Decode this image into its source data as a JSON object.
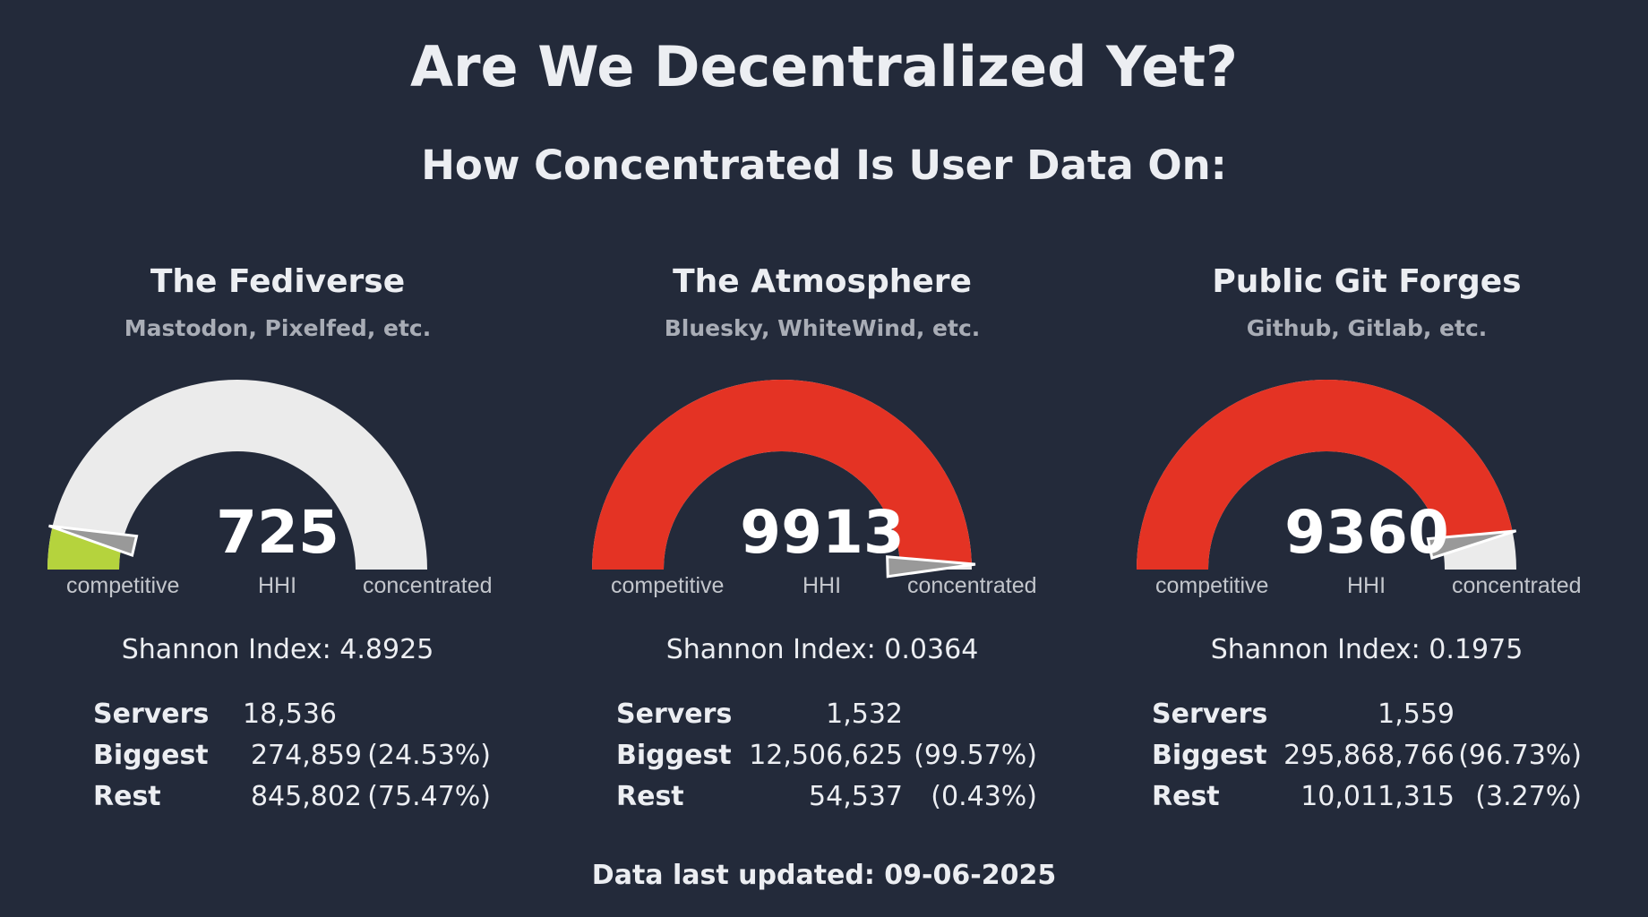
{
  "header": {
    "title": "Are We Decentralized Yet?",
    "subtitle": "How Concentrated Is User Data On:"
  },
  "colors": {
    "background": "#232a3a",
    "track": "#ebebeb",
    "competitive": "#b5d33d",
    "concentrated": "#e43324",
    "needle": "#999999"
  },
  "chart_data": [
    {
      "type": "gauge",
      "title": "The Fediverse",
      "subtitle": "Mastodon, Pixelfed, etc.",
      "value": 725,
      "value_label": "725",
      "min": 0,
      "max": 10000,
      "center_label": "HHI",
      "min_label": "competitive",
      "max_label": "concentrated",
      "fill_color": "#b5d33d",
      "shannon_label": "Shannon Index: 4.8925",
      "stats": [
        {
          "label": "Servers",
          "number": "18,536",
          "percent": ""
        },
        {
          "label": "Biggest",
          "number": "274,859",
          "percent": "(24.53%)"
        },
        {
          "label": "Rest",
          "number": "845,802",
          "percent": "(75.47%)"
        }
      ]
    },
    {
      "type": "gauge",
      "title": "The Atmosphere",
      "subtitle": "Bluesky, WhiteWind, etc.",
      "value": 9913,
      "value_label": "9913",
      "min": 0,
      "max": 10000,
      "center_label": "HHI",
      "min_label": "competitive",
      "max_label": "concentrated",
      "fill_color": "#e43324",
      "shannon_label": "Shannon Index: 0.0364",
      "stats": [
        {
          "label": "Servers",
          "number": "1,532",
          "percent": ""
        },
        {
          "label": "Biggest",
          "number": "12,506,625",
          "percent": "(99.57%)"
        },
        {
          "label": "Rest",
          "number": "54,537",
          "percent": "(0.43%)"
        }
      ]
    },
    {
      "type": "gauge",
      "title": "Public Git Forges",
      "subtitle": "Github, Gitlab, etc.",
      "value": 9360,
      "value_label": "9360",
      "min": 0,
      "max": 10000,
      "center_label": "HHI",
      "min_label": "competitive",
      "max_label": "concentrated",
      "fill_color": "#e43324",
      "shannon_label": "Shannon Index: 0.1975",
      "stats": [
        {
          "label": "Servers",
          "number": "1,559",
          "percent": ""
        },
        {
          "label": "Biggest",
          "number": "295,868,766",
          "percent": "(96.73%)"
        },
        {
          "label": "Rest",
          "number": "10,011,315",
          "percent": "(3.27%)"
        }
      ]
    }
  ],
  "footer": {
    "updated": "Data last updated: 09-06-2025"
  }
}
